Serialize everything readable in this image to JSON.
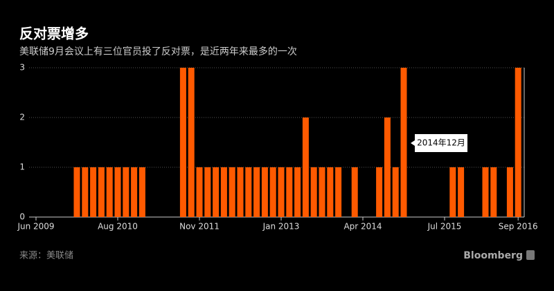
{
  "chart_data": {
    "type": "bar",
    "title": "反对票增多",
    "subtitle": "美联储9月会议上有三位官员投了反对票，是近两年来最多的一次",
    "categories": [
      "Jun 2009",
      null,
      null,
      null,
      null,
      null,
      null,
      null,
      null,
      null,
      "Aug 2010",
      null,
      null,
      null,
      null,
      null,
      null,
      null,
      null,
      null,
      "Nov 2011",
      null,
      null,
      null,
      null,
      null,
      null,
      null,
      null,
      null,
      "Jan 2013",
      null,
      null,
      null,
      null,
      null,
      null,
      null,
      null,
      null,
      "Apr 2014",
      null,
      null,
      null,
      null,
      null,
      null,
      null,
      null,
      null,
      "Jul 2015",
      null,
      null,
      null,
      null,
      null,
      null,
      null,
      null,
      "Sep 2016"
    ],
    "values": [
      0,
      0,
      0,
      0,
      0,
      1,
      1,
      1,
      1,
      1,
      1,
      1,
      1,
      1,
      0,
      0,
      0,
      0,
      3,
      3,
      1,
      1,
      1,
      1,
      1,
      1,
      1,
      1,
      1,
      1,
      1,
      1,
      1,
      2,
      1,
      1,
      1,
      1,
      0,
      1,
      0,
      0,
      1,
      2,
      1,
      3,
      0,
      0,
      0,
      0,
      0,
      1,
      1,
      0,
      0,
      1,
      1,
      0,
      1,
      3
    ],
    "color": "#ff5a00",
    "ylim": [
      0,
      3
    ],
    "yticks": [
      0,
      1,
      2,
      3
    ],
    "grid": true,
    "annotation": "2014年12月",
    "source": "来源：美联储",
    "brand": "Bloomberg"
  }
}
